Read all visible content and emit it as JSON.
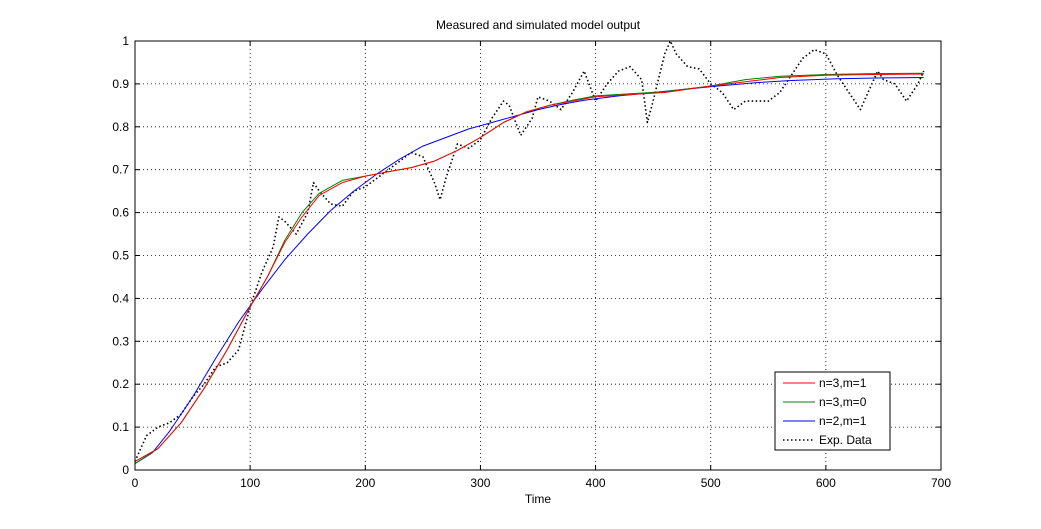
{
  "chart_data": {
    "type": "line",
    "title": "Measured and simulated model output",
    "xlabel": "Time",
    "ylabel": "",
    "xlim": [
      0,
      700
    ],
    "ylim": [
      0,
      1
    ],
    "xticks": [
      0,
      100,
      200,
      300,
      400,
      500,
      600,
      700
    ],
    "yticks": [
      0,
      0.1,
      0.2,
      0.3,
      0.4,
      0.5,
      0.6,
      0.7,
      0.8,
      0.9,
      1
    ],
    "grid": true,
    "legend_position": "bottom-right",
    "series": [
      {
        "name": "n=3,m=1",
        "color": "#ff0000",
        "style": "solid",
        "points": [
          [
            0,
            0.02
          ],
          [
            20,
            0.05
          ],
          [
            40,
            0.11
          ],
          [
            60,
            0.19
          ],
          [
            80,
            0.28
          ],
          [
            100,
            0.38
          ],
          [
            115,
            0.45
          ],
          [
            130,
            0.53
          ],
          [
            145,
            0.59
          ],
          [
            160,
            0.64
          ],
          [
            180,
            0.67
          ],
          [
            200,
            0.685
          ],
          [
            220,
            0.695
          ],
          [
            240,
            0.705
          ],
          [
            260,
            0.72
          ],
          [
            280,
            0.745
          ],
          [
            300,
            0.775
          ],
          [
            320,
            0.81
          ],
          [
            340,
            0.835
          ],
          [
            360,
            0.85
          ],
          [
            380,
            0.86
          ],
          [
            400,
            0.87
          ],
          [
            430,
            0.875
          ],
          [
            460,
            0.88
          ],
          [
            500,
            0.895
          ],
          [
            530,
            0.905
          ],
          [
            560,
            0.915
          ],
          [
            600,
            0.92
          ],
          [
            640,
            0.922
          ],
          [
            685,
            0.923
          ]
        ]
      },
      {
        "name": "n=3,m=0",
        "color": "#008000",
        "style": "solid",
        "points": [
          [
            0,
            0.015
          ],
          [
            20,
            0.05
          ],
          [
            40,
            0.11
          ],
          [
            60,
            0.19
          ],
          [
            80,
            0.28
          ],
          [
            100,
            0.38
          ],
          [
            115,
            0.45
          ],
          [
            130,
            0.535
          ],
          [
            145,
            0.6
          ],
          [
            160,
            0.645
          ],
          [
            180,
            0.675
          ],
          [
            200,
            0.685
          ],
          [
            220,
            0.695
          ],
          [
            240,
            0.705
          ],
          [
            260,
            0.72
          ],
          [
            280,
            0.745
          ],
          [
            300,
            0.775
          ],
          [
            320,
            0.81
          ],
          [
            340,
            0.835
          ],
          [
            360,
            0.85
          ],
          [
            380,
            0.862
          ],
          [
            400,
            0.872
          ],
          [
            430,
            0.877
          ],
          [
            460,
            0.882
          ],
          [
            500,
            0.895
          ],
          [
            530,
            0.91
          ],
          [
            560,
            0.918
          ],
          [
            600,
            0.922
          ],
          [
            640,
            0.924
          ],
          [
            685,
            0.925
          ]
        ]
      },
      {
        "name": "n=2,m=1",
        "color": "#0000ff",
        "style": "solid",
        "points": [
          [
            0,
            0.015
          ],
          [
            15,
            0.04
          ],
          [
            30,
            0.09
          ],
          [
            50,
            0.17
          ],
          [
            70,
            0.26
          ],
          [
            90,
            0.345
          ],
          [
            110,
            0.42
          ],
          [
            130,
            0.49
          ],
          [
            150,
            0.55
          ],
          [
            170,
            0.605
          ],
          [
            190,
            0.65
          ],
          [
            210,
            0.69
          ],
          [
            230,
            0.725
          ],
          [
            250,
            0.755
          ],
          [
            270,
            0.775
          ],
          [
            290,
            0.795
          ],
          [
            310,
            0.81
          ],
          [
            330,
            0.825
          ],
          [
            350,
            0.84
          ],
          [
            370,
            0.852
          ],
          [
            390,
            0.862
          ],
          [
            420,
            0.872
          ],
          [
            450,
            0.88
          ],
          [
            480,
            0.888
          ],
          [
            510,
            0.896
          ],
          [
            540,
            0.903
          ],
          [
            570,
            0.908
          ],
          [
            610,
            0.912
          ],
          [
            650,
            0.914
          ],
          [
            685,
            0.915
          ]
        ]
      },
      {
        "name": "Exp. Data",
        "color": "#000000",
        "style": "dotted",
        "points": [
          [
            0,
            0.02
          ],
          [
            10,
            0.08
          ],
          [
            20,
            0.1
          ],
          [
            30,
            0.11
          ],
          [
            40,
            0.13
          ],
          [
            50,
            0.17
          ],
          [
            60,
            0.2
          ],
          [
            70,
            0.24
          ],
          [
            80,
            0.25
          ],
          [
            90,
            0.28
          ],
          [
            100,
            0.38
          ],
          [
            110,
            0.46
          ],
          [
            120,
            0.52
          ],
          [
            125,
            0.59
          ],
          [
            130,
            0.58
          ],
          [
            140,
            0.55
          ],
          [
            150,
            0.6
          ],
          [
            155,
            0.67
          ],
          [
            160,
            0.65
          ],
          [
            170,
            0.62
          ],
          [
            180,
            0.615
          ],
          [
            190,
            0.65
          ],
          [
            200,
            0.66
          ],
          [
            210,
            0.68
          ],
          [
            220,
            0.7
          ],
          [
            230,
            0.72
          ],
          [
            240,
            0.74
          ],
          [
            250,
            0.73
          ],
          [
            260,
            0.67
          ],
          [
            265,
            0.63
          ],
          [
            270,
            0.68
          ],
          [
            280,
            0.76
          ],
          [
            290,
            0.75
          ],
          [
            300,
            0.77
          ],
          [
            310,
            0.82
          ],
          [
            320,
            0.86
          ],
          [
            325,
            0.85
          ],
          [
            335,
            0.78
          ],
          [
            345,
            0.82
          ],
          [
            350,
            0.87
          ],
          [
            360,
            0.86
          ],
          [
            370,
            0.84
          ],
          [
            380,
            0.88
          ],
          [
            390,
            0.93
          ],
          [
            400,
            0.86
          ],
          [
            410,
            0.9
          ],
          [
            420,
            0.93
          ],
          [
            430,
            0.94
          ],
          [
            440,
            0.91
          ],
          [
            445,
            0.81
          ],
          [
            450,
            0.86
          ],
          [
            460,
            0.97
          ],
          [
            465,
            1.0
          ],
          [
            470,
            0.97
          ],
          [
            480,
            0.94
          ],
          [
            490,
            0.935
          ],
          [
            500,
            0.9
          ],
          [
            510,
            0.88
          ],
          [
            520,
            0.84
          ],
          [
            530,
            0.86
          ],
          [
            540,
            0.86
          ],
          [
            550,
            0.86
          ],
          [
            560,
            0.88
          ],
          [
            570,
            0.92
          ],
          [
            580,
            0.96
          ],
          [
            590,
            0.98
          ],
          [
            600,
            0.97
          ],
          [
            610,
            0.92
          ],
          [
            620,
            0.88
          ],
          [
            630,
            0.84
          ],
          [
            640,
            0.9
          ],
          [
            645,
            0.93
          ],
          [
            650,
            0.91
          ],
          [
            660,
            0.9
          ],
          [
            670,
            0.86
          ],
          [
            680,
            0.9
          ],
          [
            685,
            0.93
          ]
        ]
      }
    ]
  }
}
